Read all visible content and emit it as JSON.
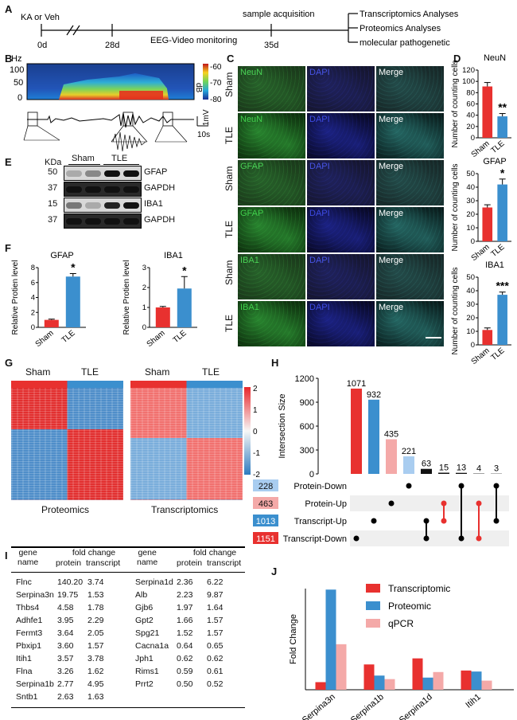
{
  "panels": {
    "A": "A",
    "B": "B",
    "C": "C",
    "D": "D",
    "E": "E",
    "F": "F",
    "G": "G",
    "H": "H",
    "I": "I",
    "J": "J"
  },
  "timeline": {
    "start_label": "KA or Veh",
    "ticks": [
      "0d",
      "28d",
      "35d"
    ],
    "eeg_label": "EEG-Video monitoring",
    "sample_label": "sample acquisition",
    "outputs": [
      "Transcriptomics Analyses",
      "Proteomics Analyses",
      "molecular pathogenetic"
    ]
  },
  "spectrogram": {
    "y_unit": "Hz",
    "y_ticks": [
      "100",
      "50",
      "0"
    ],
    "cbar_ticks": [
      "-60",
      "-70",
      "-80"
    ],
    "cbar_unit": "dB",
    "scale_time": "10s",
    "scale_volt": "1mV"
  },
  "microscopy": {
    "row_labels": [
      "Sham",
      "TLE",
      "Sham",
      "TLE",
      "Sham",
      "TLE"
    ],
    "rows": [
      {
        "marker": "NeuN",
        "dapi": "DAPI",
        "merge": "Merge"
      },
      {
        "marker": "NeuN",
        "dapi": "DAPI",
        "merge": "Merge"
      },
      {
        "marker": "GFAP",
        "dapi": "DAPI",
        "merge": "Merge"
      },
      {
        "marker": "GFAP",
        "dapi": "DAPI",
        "merge": "Merge"
      },
      {
        "marker": "IBA1",
        "dapi": "DAPI",
        "merge": "Merge"
      },
      {
        "marker": "IBA1",
        "dapi": "DAPI",
        "merge": "Merge"
      }
    ]
  },
  "blot": {
    "kda_label": "KDa",
    "groups": [
      "Sham",
      "TLE"
    ],
    "rows": [
      {
        "kda": "50",
        "protein": "GFAP"
      },
      {
        "kda": "37",
        "protein": "GAPDH"
      },
      {
        "kda": "15",
        "protein": "IBA1"
      },
      {
        "kda": "37",
        "protein": "GAPDH"
      }
    ]
  },
  "heatmap": {
    "groups": [
      "Sham",
      "TLE"
    ],
    "left_title": "Proteomics",
    "right_title": "Transcriptomics",
    "colorbar_ticks": [
      "2",
      "1",
      "0",
      "-1",
      "-2"
    ]
  },
  "table": {
    "header": {
      "gene": "gene",
      "name": "name",
      "fold_change": "fold change",
      "protein": "protein",
      "transcript": "transcript"
    },
    "left": [
      [
        "Flnc",
        "140.20",
        "3.74"
      ],
      [
        "Serpina3n",
        "19.75",
        "1.53"
      ],
      [
        "Thbs4",
        "4.58",
        "1.78"
      ],
      [
        "Adhfe1",
        "3.95",
        "2.29"
      ],
      [
        "Fermt3",
        "3.64",
        "2.05"
      ],
      [
        "Pbxip1",
        "3.60",
        "1.57"
      ],
      [
        "Itih1",
        "3.57",
        "3.78"
      ],
      [
        "Flna",
        "3.26",
        "1.62"
      ],
      [
        "Serpina1b",
        "2.77",
        "4.95"
      ],
      [
        "Sntb1",
        "2.63",
        "1.63"
      ]
    ],
    "right": [
      [
        "Serpina1d",
        "2.36",
        "6.22"
      ],
      [
        "Alb",
        "2.23",
        "9.87"
      ],
      [
        "Gjb6",
        "1.97",
        "1.64"
      ],
      [
        "Gpt2",
        "1.66",
        "1.57"
      ],
      [
        "Spg21",
        "1.52",
        "1.57"
      ],
      [
        "Cacna1a",
        "0.64",
        "0.65"
      ],
      [
        "Jph1",
        "0.62",
        "0.62"
      ],
      [
        "Rims1",
        "0.59",
        "0.61"
      ],
      [
        "Prrt2",
        "0.50",
        "0.52"
      ]
    ]
  },
  "chart_data": [
    {
      "type": "bar",
      "panel": "D",
      "title": "NeuN",
      "ylabel": "Number of counting cells",
      "categories": [
        "Sham",
        "TLE"
      ],
      "values": [
        91,
        38
      ],
      "errors": [
        7,
        5
      ],
      "ylim": [
        0,
        120
      ],
      "yticks": [
        0,
        20,
        40,
        60,
        80,
        100,
        120
      ],
      "sig": "**",
      "colors": [
        "#e8312f",
        "#3b8fce"
      ]
    },
    {
      "type": "bar",
      "panel": "D",
      "title": "GFAP",
      "ylabel": "Number of counting cells",
      "categories": [
        "Sham",
        "TLE"
      ],
      "values": [
        25,
        42
      ],
      "errors": [
        2,
        4
      ],
      "ylim": [
        0,
        50
      ],
      "yticks": [
        0,
        10,
        20,
        30,
        40,
        50
      ],
      "sig": "*",
      "colors": [
        "#e8312f",
        "#3b8fce"
      ]
    },
    {
      "type": "bar",
      "panel": "D",
      "title": "IBA1",
      "ylabel": "Number of counting cells",
      "categories": [
        "Sham",
        "TLE"
      ],
      "values": [
        11,
        37
      ],
      "errors": [
        1.5,
        2
      ],
      "ylim": [
        0,
        50
      ],
      "yticks": [
        0,
        10,
        20,
        30,
        40,
        50
      ],
      "sig": "***",
      "colors": [
        "#e8312f",
        "#3b8fce"
      ]
    },
    {
      "type": "bar",
      "panel": "F",
      "title": "GFAP",
      "ylabel": "Relative Protien level",
      "categories": [
        "Sham",
        "TLE"
      ],
      "values": [
        1.0,
        6.8
      ],
      "errors": [
        0.1,
        0.4
      ],
      "ylim": [
        0,
        8
      ],
      "yticks": [
        0,
        2,
        4,
        6,
        8
      ],
      "sig": "*",
      "colors": [
        "#e8312f",
        "#3b8fce"
      ]
    },
    {
      "type": "bar",
      "panel": "F",
      "title": "IBA1",
      "ylabel": "Relative Protien level",
      "categories": [
        "Sham",
        "TLE"
      ],
      "values": [
        1.0,
        1.95
      ],
      "errors": [
        0.05,
        0.6
      ],
      "ylim": [
        0,
        3
      ],
      "yticks": [
        0,
        1,
        2,
        3
      ],
      "sig": "*",
      "colors": [
        "#e8312f",
        "#3b8fce"
      ]
    },
    {
      "type": "bar",
      "panel": "H",
      "ylabel": "Intersection Size",
      "values": [
        1071,
        932,
        435,
        221,
        63,
        15,
        13,
        4,
        3
      ],
      "labels": [
        "1071",
        "932",
        "435",
        "221",
        "63",
        "15",
        "13",
        "4",
        "3"
      ],
      "colors": [
        "#e8312f",
        "#3b8fce",
        "#f4a9a8",
        "#a9cdf0",
        "#111",
        "#111",
        "#111",
        "#111",
        "#111"
      ],
      "ylim": [
        0,
        1200
      ],
      "yticks": [
        0,
        300,
        600,
        900,
        1200
      ],
      "sets": [
        {
          "name": "Protein-Down",
          "size": 228,
          "color": "#a9cdf0"
        },
        {
          "name": "Protein-Up",
          "size": 463,
          "color": "#f4a9a8"
        },
        {
          "name": "Transcript-Up",
          "size": 1013,
          "color": "#3b8fce"
        },
        {
          "name": "Transcript-Down",
          "size": 1151,
          "color": "#e8312f"
        }
      ]
    },
    {
      "type": "bar",
      "panel": "J",
      "ylabel": "Fold Change",
      "categories": [
        "Serpina3n",
        "Serpina1b",
        "Serpina1d",
        "Itih1"
      ],
      "series": [
        {
          "name": "Transcriptomic",
          "values": [
            1.5,
            5.0,
            6.2,
            3.8
          ],
          "color": "#e8312f"
        },
        {
          "name": "Proteomic",
          "values": [
            19.8,
            2.8,
            2.4,
            3.6
          ],
          "color": "#3b8fce"
        },
        {
          "name": "qPCR",
          "values": [
            9.0,
            2.1,
            3.5,
            1.8
          ],
          "color": "#f4a9a8"
        }
      ],
      "ylim": [
        0,
        20
      ]
    }
  ]
}
